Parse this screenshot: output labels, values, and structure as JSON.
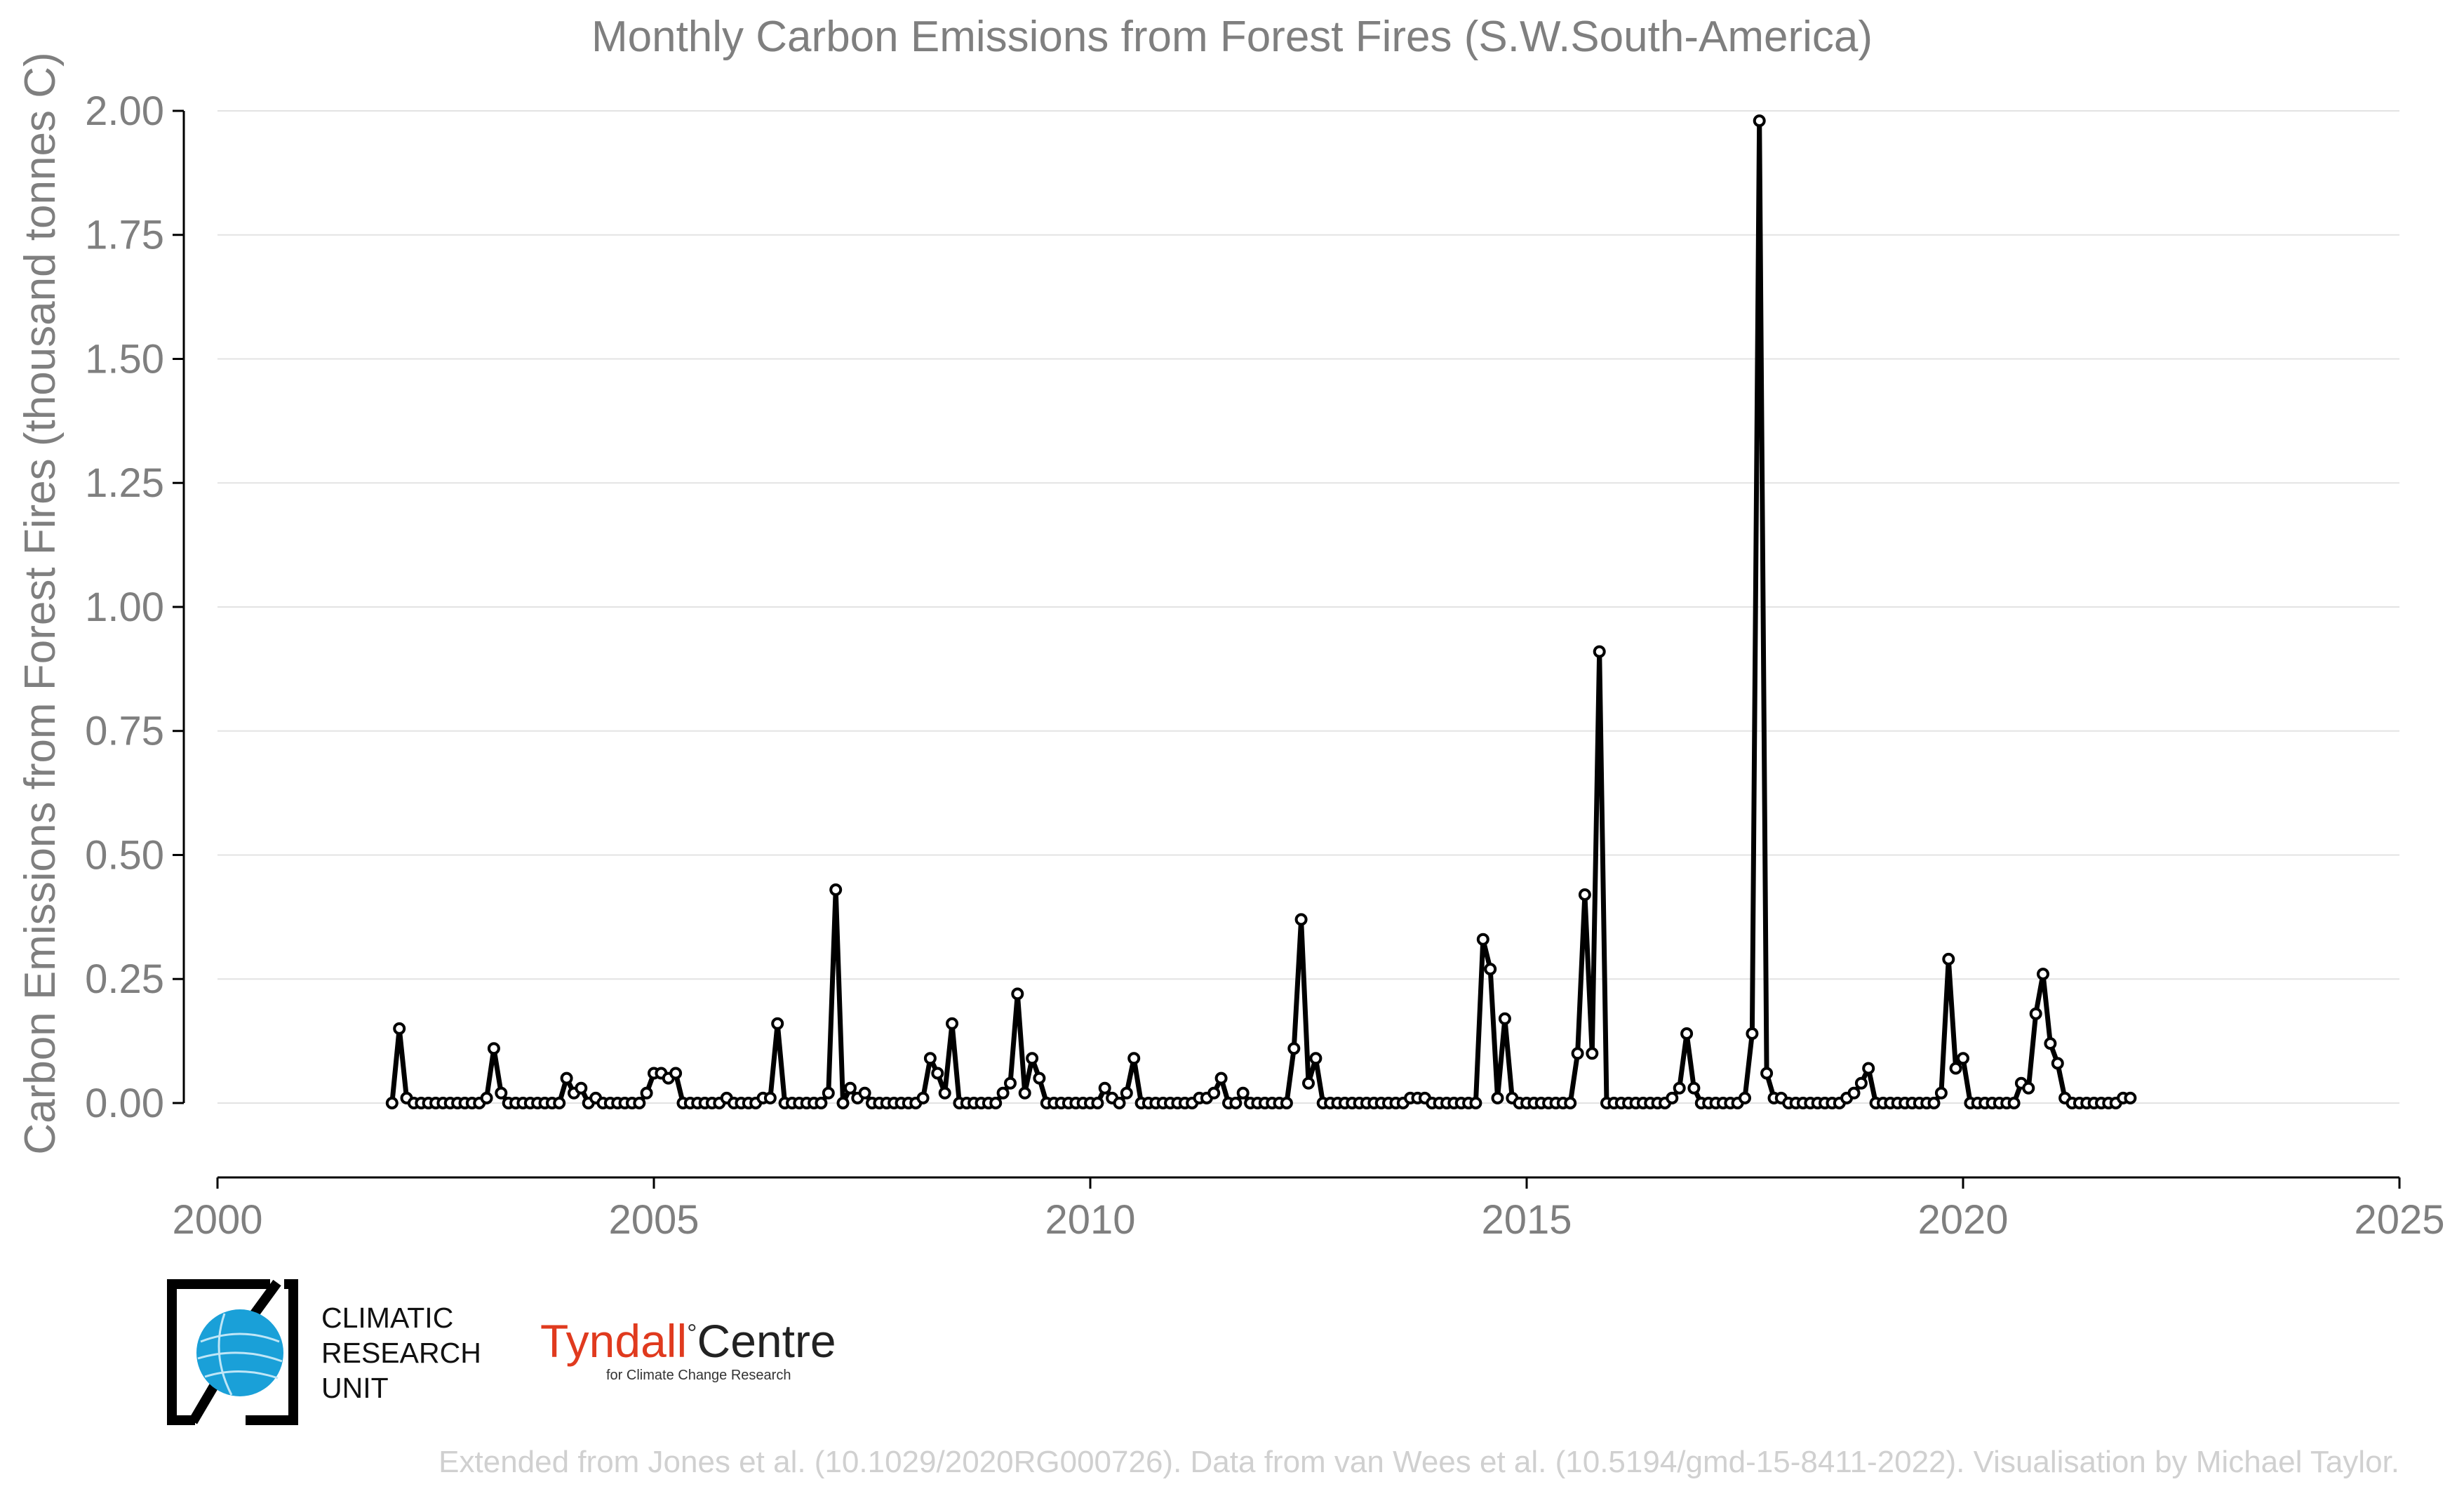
{
  "chart_data": {
    "type": "line",
    "title": "Monthly Carbon Emissions from Forest Fires (S.W.South-America)",
    "ylabel": "Carbon Emissions from Forest Fires (thousand tonnes C)",
    "xlabel": "",
    "xlim": [
      2000,
      2025
    ],
    "ylim": [
      -0.15,
      2.0
    ],
    "x_ticks": [
      "2000",
      "2005",
      "2010",
      "2015",
      "2020",
      "2025"
    ],
    "y_ticks": [
      "0.00",
      "0.25",
      "0.50",
      "0.75",
      "1.00",
      "1.25",
      "1.50",
      "1.75",
      "2.00"
    ],
    "grid": "horizontal",
    "x_start": 2002.0,
    "x_step_months": 1,
    "series": [
      {
        "values": [
          0.0,
          0.15,
          0.01,
          0.0,
          0.0,
          0.0,
          0.0,
          0.0,
          0.0,
          0.0,
          0.0,
          0.0,
          0.0,
          0.01,
          0.11,
          0.02,
          0.0,
          0.0,
          0.0,
          0.0,
          0.0,
          0.0,
          0.0,
          0.0,
          0.05,
          0.02,
          0.03,
          0.0,
          0.01,
          0.0,
          0.0,
          0.0,
          0.0,
          0.0,
          0.0,
          0.02,
          0.06,
          0.06,
          0.05,
          0.06,
          0.0,
          0.0,
          0.0,
          0.0,
          0.0,
          0.0,
          0.01,
          0.0,
          0.0,
          0.0,
          0.0,
          0.01,
          0.01,
          0.16,
          0.0,
          0.0,
          0.0,
          0.0,
          0.0,
          0.0,
          0.02,
          0.43,
          0.0,
          0.03,
          0.01,
          0.02,
          0.0,
          0.0,
          0.0,
          0.0,
          0.0,
          0.0,
          0.0,
          0.01,
          0.09,
          0.06,
          0.02,
          0.16,
          0.0,
          0.0,
          0.0,
          0.0,
          0.0,
          0.0,
          0.02,
          0.04,
          0.22,
          0.02,
          0.09,
          0.05,
          0.0,
          0.0,
          0.0,
          0.0,
          0.0,
          0.0,
          0.0,
          0.0,
          0.03,
          0.01,
          0.0,
          0.02,
          0.09,
          0.0,
          0.0,
          0.0,
          0.0,
          0.0,
          0.0,
          0.0,
          0.0,
          0.01,
          0.01,
          0.02,
          0.05,
          0.0,
          0.0,
          0.02,
          0.0,
          0.0,
          0.0,
          0.0,
          0.0,
          0.0,
          0.11,
          0.37,
          0.04,
          0.09,
          0.0,
          0.0,
          0.0,
          0.0,
          0.0,
          0.0,
          0.0,
          0.0,
          0.0,
          0.0,
          0.0,
          0.0,
          0.01,
          0.01,
          0.01,
          0.0,
          0.0,
          0.0,
          0.0,
          0.0,
          0.0,
          0.0,
          0.33,
          0.27,
          0.01,
          0.17,
          0.01,
          0.0,
          0.0,
          0.0,
          0.0,
          0.0,
          0.0,
          0.0,
          0.0,
          0.1,
          0.42,
          0.1,
          0.91,
          0.0,
          0.0,
          0.0,
          0.0,
          0.0,
          0.0,
          0.0,
          0.0,
          0.0,
          0.01,
          0.03,
          0.14,
          0.03,
          0.0,
          0.0,
          0.0,
          0.0,
          0.0,
          0.0,
          0.01,
          0.14,
          1.98,
          0.06,
          0.01,
          0.01,
          0.0,
          0.0,
          0.0,
          0.0,
          0.0,
          0.0,
          0.0,
          0.0,
          0.01,
          0.02,
          0.04,
          0.07,
          0.0,
          0.0,
          0.0,
          0.0,
          0.0,
          0.0,
          0.0,
          0.0,
          0.0,
          0.02,
          0.29,
          0.07,
          0.09,
          0.0,
          0.0,
          0.0,
          0.0,
          0.0,
          0.0,
          0.0,
          0.04,
          0.03,
          0.18,
          0.26,
          0.12,
          0.08,
          0.01,
          0.0,
          0.0,
          0.0,
          0.0,
          0.0,
          0.0,
          0.0,
          0.01,
          0.01
        ]
      }
    ]
  },
  "logos": {
    "cru_line1": "CLIMATIC",
    "cru_line2": "RESEARCH",
    "cru_line3": "UNIT",
    "tyndall_name": "Tyndall",
    "tyndall_degree": "°",
    "tyndall_centre": "Centre",
    "tyndall_sub": "for Climate Change Research"
  },
  "credit": "Extended from Jones et al. (10.1029/2020RG000726). Data from van Wees et al. (10.5194/gmd-15-8411-2022). Visualisation by Michael Taylor.",
  "colors": {
    "line": "#000000",
    "text": "#7f7f7f",
    "grid": "#e3e3e3",
    "credit": "#d0d0d0",
    "cru_blue": "#1aa0d8",
    "tyndall_red": "#e03a1e"
  }
}
